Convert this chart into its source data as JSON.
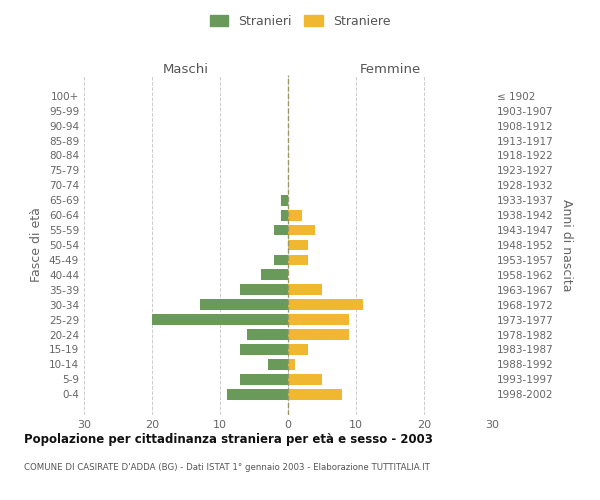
{
  "age_groups": [
    "0-4",
    "5-9",
    "10-14",
    "15-19",
    "20-24",
    "25-29",
    "30-34",
    "35-39",
    "40-44",
    "45-49",
    "50-54",
    "55-59",
    "60-64",
    "65-69",
    "70-74",
    "75-79",
    "80-84",
    "85-89",
    "90-94",
    "95-99",
    "100+"
  ],
  "birth_years": [
    "1998-2002",
    "1993-1997",
    "1988-1992",
    "1983-1987",
    "1978-1982",
    "1973-1977",
    "1968-1972",
    "1963-1967",
    "1958-1962",
    "1953-1957",
    "1948-1952",
    "1943-1947",
    "1938-1942",
    "1933-1937",
    "1928-1932",
    "1923-1927",
    "1918-1922",
    "1913-1917",
    "1908-1912",
    "1903-1907",
    "≤ 1902"
  ],
  "males": [
    9,
    7,
    3,
    7,
    6,
    20,
    13,
    7,
    4,
    2,
    0,
    2,
    1,
    1,
    0,
    0,
    0,
    0,
    0,
    0,
    0
  ],
  "females": [
    8,
    5,
    1,
    3,
    9,
    9,
    11,
    5,
    0,
    3,
    3,
    4,
    2,
    0,
    0,
    0,
    0,
    0,
    0,
    0,
    0
  ],
  "male_color": "#6a9a5a",
  "female_color": "#f0b830",
  "male_label": "Stranieri",
  "female_label": "Straniere",
  "title": "Popolazione per cittadinanza straniera per età e sesso - 2003",
  "subtitle": "COMUNE DI CASIRATE D'ADDA (BG) - Dati ISTAT 1° gennaio 2003 - Elaborazione TUTTITALIA.IT",
  "xlabel_left": "Maschi",
  "xlabel_right": "Femmine",
  "ylabel_left": "Fasce di età",
  "ylabel_right": "Anni di nascita",
  "xlim": 30,
  "background_color": "#ffffff",
  "grid_color": "#cccccc"
}
